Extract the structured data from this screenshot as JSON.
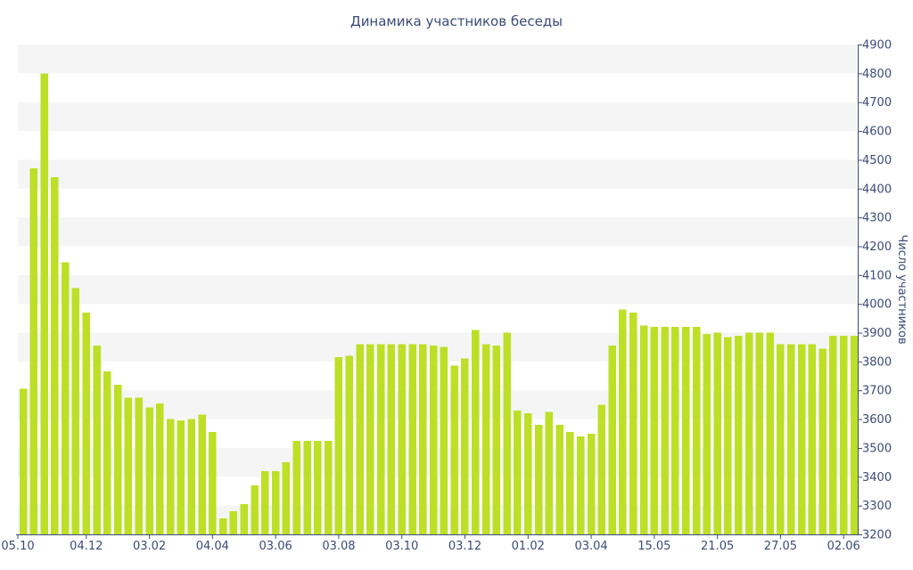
{
  "chart_data": {
    "type": "bar",
    "title": "Динамика участников беседы",
    "ylabel": "Число участников",
    "xlabel": "",
    "ylim": [
      3200,
      4900
    ],
    "yticks": [
      3200,
      3300,
      3400,
      3500,
      3600,
      3700,
      3800,
      3900,
      4000,
      4100,
      4200,
      4300,
      4400,
      4500,
      4600,
      4700,
      4800,
      4900
    ],
    "y_axis_side": "right",
    "grid": "alternating horizontal bands",
    "bar_color": "#bddf26",
    "axis_color": "#3b4a7a",
    "x_tick_labels": [
      {
        "index": 0,
        "label": "05.10"
      },
      {
        "index": 6,
        "label": "04.12"
      },
      {
        "index": 12,
        "label": "03.02"
      },
      {
        "index": 18,
        "label": "04.04"
      },
      {
        "index": 24,
        "label": "03.06"
      },
      {
        "index": 30,
        "label": "03.08"
      },
      {
        "index": 36,
        "label": "03.10"
      },
      {
        "index": 42,
        "label": "03.12"
      },
      {
        "index": 48,
        "label": "01.02"
      },
      {
        "index": 54,
        "label": "03.04"
      },
      {
        "index": 60,
        "label": "15.05"
      },
      {
        "index": 66,
        "label": "21.05"
      },
      {
        "index": 72,
        "label": "27.05"
      },
      {
        "index": 78,
        "label": "02.06"
      }
    ],
    "values": [
      3705,
      4470,
      4800,
      4440,
      4145,
      4055,
      3970,
      3855,
      3765,
      3720,
      3675,
      3675,
      3640,
      3655,
      3600,
      3595,
      3600,
      3615,
      3555,
      3255,
      3280,
      3305,
      3370,
      3420,
      3420,
      3450,
      3525,
      3525,
      3525,
      3525,
      3815,
      3820,
      3860,
      3860,
      3860,
      3860,
      3860,
      3860,
      3860,
      3855,
      3850,
      3785,
      3810,
      3910,
      3860,
      3855,
      3900,
      3630,
      3620,
      3580,
      3625,
      3580,
      3555,
      3540,
      3550,
      3650,
      3855,
      3980,
      3970,
      3925,
      3920,
      3920,
      3920,
      3920,
      3920,
      3895,
      3900,
      3885,
      3890,
      3900,
      3900,
      3900,
      3860,
      3860,
      3860,
      3860,
      3845,
      3890,
      3890,
      3890
    ]
  }
}
